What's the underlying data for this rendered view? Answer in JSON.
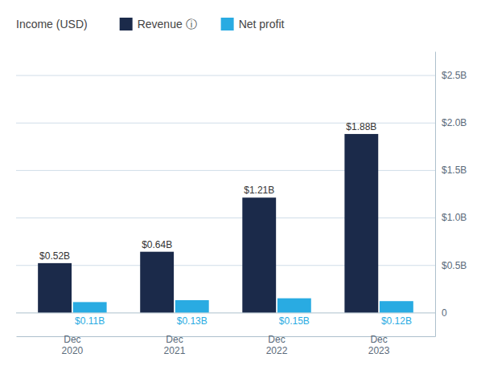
{
  "chart_data": {
    "type": "bar",
    "legend_title": "Income (USD)",
    "categories": [
      "Dec\n2020",
      "Dec\n2021",
      "Dec\n2022",
      "Dec\n2023"
    ],
    "series": [
      {
        "name": "Revenue ⓘ",
        "color": "#1b2a4a",
        "values": [
          0.52,
          0.64,
          1.21,
          1.88
        ],
        "value_labels": [
          "$0.52B",
          "$0.64B",
          "$1.21B",
          "$1.88B"
        ]
      },
      {
        "name": "Net profit",
        "color": "#29abe2",
        "values": [
          0.11,
          0.13,
          0.15,
          0.12
        ],
        "value_labels": [
          "$0.11B",
          "$0.13B",
          "$0.15B",
          "$0.12B"
        ]
      }
    ],
    "ylim": [
      -0.25,
      2.75
    ],
    "yticks": [
      {
        "value": 2.5,
        "label": "$2.5B"
      },
      {
        "value": 2.0,
        "label": "$2.0B"
      },
      {
        "value": 1.5,
        "label": "$1.5B"
      },
      {
        "value": 1.0,
        "label": "$1.0B"
      },
      {
        "value": 0.5,
        "label": "$0.5B"
      },
      0
    ],
    "grid": true,
    "data_labels": true
  }
}
